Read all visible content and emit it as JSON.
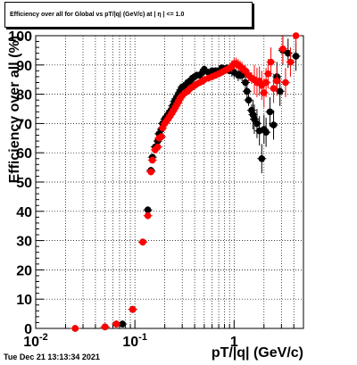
{
  "title": "Efficiency over all for Global vs pT/|q| (GeV/c) at | η | <= 1.0",
  "datestamp": "Tue Dec 21 13:13:34 2021",
  "chart_data": {
    "type": "scatter",
    "title": "Efficiency over all for Global vs pT/|q| (GeV/c) at | η | <= 1.0",
    "xlabel": "pT/|q| (GeV/c)",
    "ylabel": "Efficiency over all (%)",
    "xscale": "log",
    "xlim": [
      0.01,
      5
    ],
    "ylim": [
      0,
      100
    ],
    "x_ticks": [
      {
        "v": 0.01,
        "label": "10",
        "exp": "-2"
      },
      {
        "v": 0.1,
        "label": "10",
        "exp": "-1"
      },
      {
        "v": 1,
        "label": "1",
        "exp": ""
      }
    ],
    "y_ticks": [
      0,
      10,
      20,
      30,
      40,
      50,
      60,
      70,
      80,
      90,
      100
    ],
    "grid": true,
    "series": [
      {
        "color": "#000000",
        "points": [
          [
            0.025,
            0
          ],
          [
            0.05,
            0.5
          ],
          [
            0.065,
            1.5
          ],
          [
            0.075,
            1.5
          ],
          [
            0.095,
            6.5
          ],
          [
            0.12,
            29.5
          ],
          [
            0.135,
            40.5
          ],
          [
            0.145,
            54
          ],
          [
            0.15,
            58.5
          ],
          [
            0.16,
            62
          ],
          [
            0.17,
            64
          ],
          [
            0.175,
            66.5
          ],
          [
            0.185,
            68
          ],
          [
            0.19,
            70
          ],
          [
            0.2,
            71.5
          ],
          [
            0.21,
            72.5
          ],
          [
            0.22,
            73.5
          ],
          [
            0.23,
            74.5
          ],
          [
            0.24,
            76
          ],
          [
            0.25,
            77.5
          ],
          [
            0.26,
            78.5
          ],
          [
            0.27,
            79.5
          ],
          [
            0.28,
            80.5
          ],
          [
            0.29,
            81.5
          ],
          [
            0.3,
            82.5
          ],
          [
            0.32,
            83
          ],
          [
            0.34,
            84
          ],
          [
            0.36,
            84.5
          ],
          [
            0.38,
            85.5
          ],
          [
            0.4,
            86
          ],
          [
            0.42,
            86.5
          ],
          [
            0.45,
            86.5
          ],
          [
            0.48,
            87.5
          ],
          [
            0.5,
            88.5
          ],
          [
            0.55,
            87.5
          ],
          [
            0.6,
            88
          ],
          [
            0.65,
            88
          ],
          [
            0.7,
            88
          ],
          [
            0.75,
            89
          ],
          [
            0.8,
            88.5
          ],
          [
            0.85,
            89
          ],
          [
            0.9,
            88
          ],
          [
            0.95,
            88
          ],
          [
            1.0,
            87.5
          ],
          [
            1.1,
            86.5
          ],
          [
            1.15,
            87
          ],
          [
            1.2,
            86.5
          ],
          [
            1.3,
            84
          ],
          [
            1.35,
            81
          ],
          [
            1.4,
            78
          ],
          [
            1.5,
            74.5
          ],
          [
            1.55,
            73
          ],
          [
            1.6,
            71.5
          ],
          [
            1.7,
            70
          ],
          [
            1.8,
            67.5
          ],
          [
            1.9,
            58
          ],
          [
            2.0,
            68
          ],
          [
            2.1,
            67
          ],
          [
            2.3,
            74
          ],
          [
            2.5,
            69.5
          ],
          [
            2.7,
            86
          ],
          [
            2.9,
            81
          ],
          [
            3.1,
            95
          ],
          [
            3.5,
            94
          ],
          [
            4.2,
            93
          ]
        ]
      },
      {
        "color": "#ff0000",
        "points": [
          [
            0.025,
            0
          ],
          [
            0.05,
            0.5
          ],
          [
            0.065,
            1.5
          ],
          [
            0.095,
            6.5
          ],
          [
            0.12,
            29.5
          ],
          [
            0.135,
            38.5
          ],
          [
            0.145,
            53.5
          ],
          [
            0.15,
            57.5
          ],
          [
            0.16,
            61
          ],
          [
            0.17,
            62
          ],
          [
            0.175,
            65
          ],
          [
            0.185,
            65.5
          ],
          [
            0.19,
            68.5
          ],
          [
            0.2,
            70
          ],
          [
            0.21,
            71
          ],
          [
            0.22,
            72
          ],
          [
            0.23,
            73
          ],
          [
            0.24,
            74
          ],
          [
            0.25,
            75
          ],
          [
            0.26,
            76
          ],
          [
            0.27,
            77
          ],
          [
            0.28,
            78
          ],
          [
            0.29,
            79
          ],
          [
            0.3,
            79.5
          ],
          [
            0.32,
            80.5
          ],
          [
            0.34,
            81
          ],
          [
            0.36,
            82
          ],
          [
            0.38,
            82.5
          ],
          [
            0.4,
            83
          ],
          [
            0.42,
            83.5
          ],
          [
            0.45,
            84
          ],
          [
            0.48,
            84.5
          ],
          [
            0.5,
            85
          ],
          [
            0.55,
            85.5
          ],
          [
            0.6,
            86
          ],
          [
            0.65,
            86.5
          ],
          [
            0.7,
            87
          ],
          [
            0.75,
            87.5
          ],
          [
            0.8,
            88
          ],
          [
            0.85,
            88.5
          ],
          [
            0.9,
            89
          ],
          [
            0.95,
            89.5
          ],
          [
            1.0,
            90.5
          ],
          [
            1.05,
            90.5
          ],
          [
            1.1,
            90
          ],
          [
            1.15,
            89.5
          ],
          [
            1.2,
            89
          ],
          [
            1.3,
            88
          ],
          [
            1.4,
            86.5
          ],
          [
            1.5,
            85.5
          ],
          [
            1.6,
            85
          ],
          [
            1.7,
            84
          ],
          [
            1.8,
            84.5
          ],
          [
            1.9,
            83
          ],
          [
            2.0,
            80.5
          ],
          [
            2.1,
            84
          ],
          [
            2.2,
            87
          ],
          [
            2.35,
            91
          ],
          [
            2.5,
            82
          ],
          [
            2.7,
            84.5
          ],
          [
            3.1,
            95.5
          ],
          [
            3.3,
            84
          ],
          [
            3.7,
            91
          ],
          [
            4.2,
            100
          ]
        ]
      }
    ]
  }
}
